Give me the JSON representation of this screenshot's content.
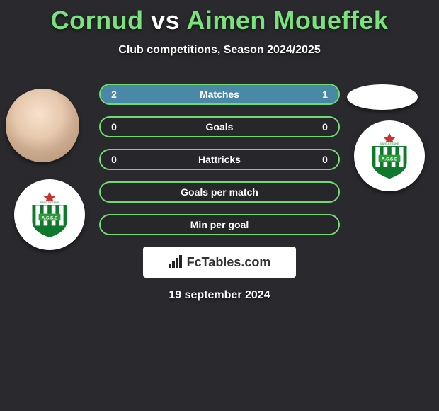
{
  "title": {
    "player1": "Cornud",
    "vs": "vs",
    "player2": "Aimen Moueffek",
    "accent_color": "#7be07e",
    "fontsize": 36
  },
  "subtitle": "Club competitions, Season 2024/2025",
  "stats": {
    "border_color": "#6fdc73",
    "fill_color": "#4a88a8",
    "rows": [
      {
        "label": "Matches",
        "left": "2",
        "right": "1",
        "left_pct": 67,
        "right_pct": 33
      },
      {
        "label": "Goals",
        "left": "0",
        "right": "0",
        "left_pct": 0,
        "right_pct": 0
      },
      {
        "label": "Hattricks",
        "left": "0",
        "right": "0",
        "left_pct": 0,
        "right_pct": 0
      },
      {
        "label": "Goals per match",
        "left": "",
        "right": "",
        "left_pct": 0,
        "right_pct": 0
      },
      {
        "label": "Min per goal",
        "left": "",
        "right": "",
        "left_pct": 0,
        "right_pct": 0
      }
    ]
  },
  "club_badge": {
    "text": "A.S.S.E",
    "subtext": "SAINT-ETIENNE LOIRE",
    "stripe_colors": [
      "#0f7a2c",
      "#ffffff"
    ],
    "panel_color": "#2c9c3b",
    "star_color": "#c83232"
  },
  "footer": {
    "logo_text": "FcTables.com",
    "date": "19 september 2024"
  },
  "colors": {
    "background": "#2a2a2e",
    "text": "#ffffff"
  }
}
